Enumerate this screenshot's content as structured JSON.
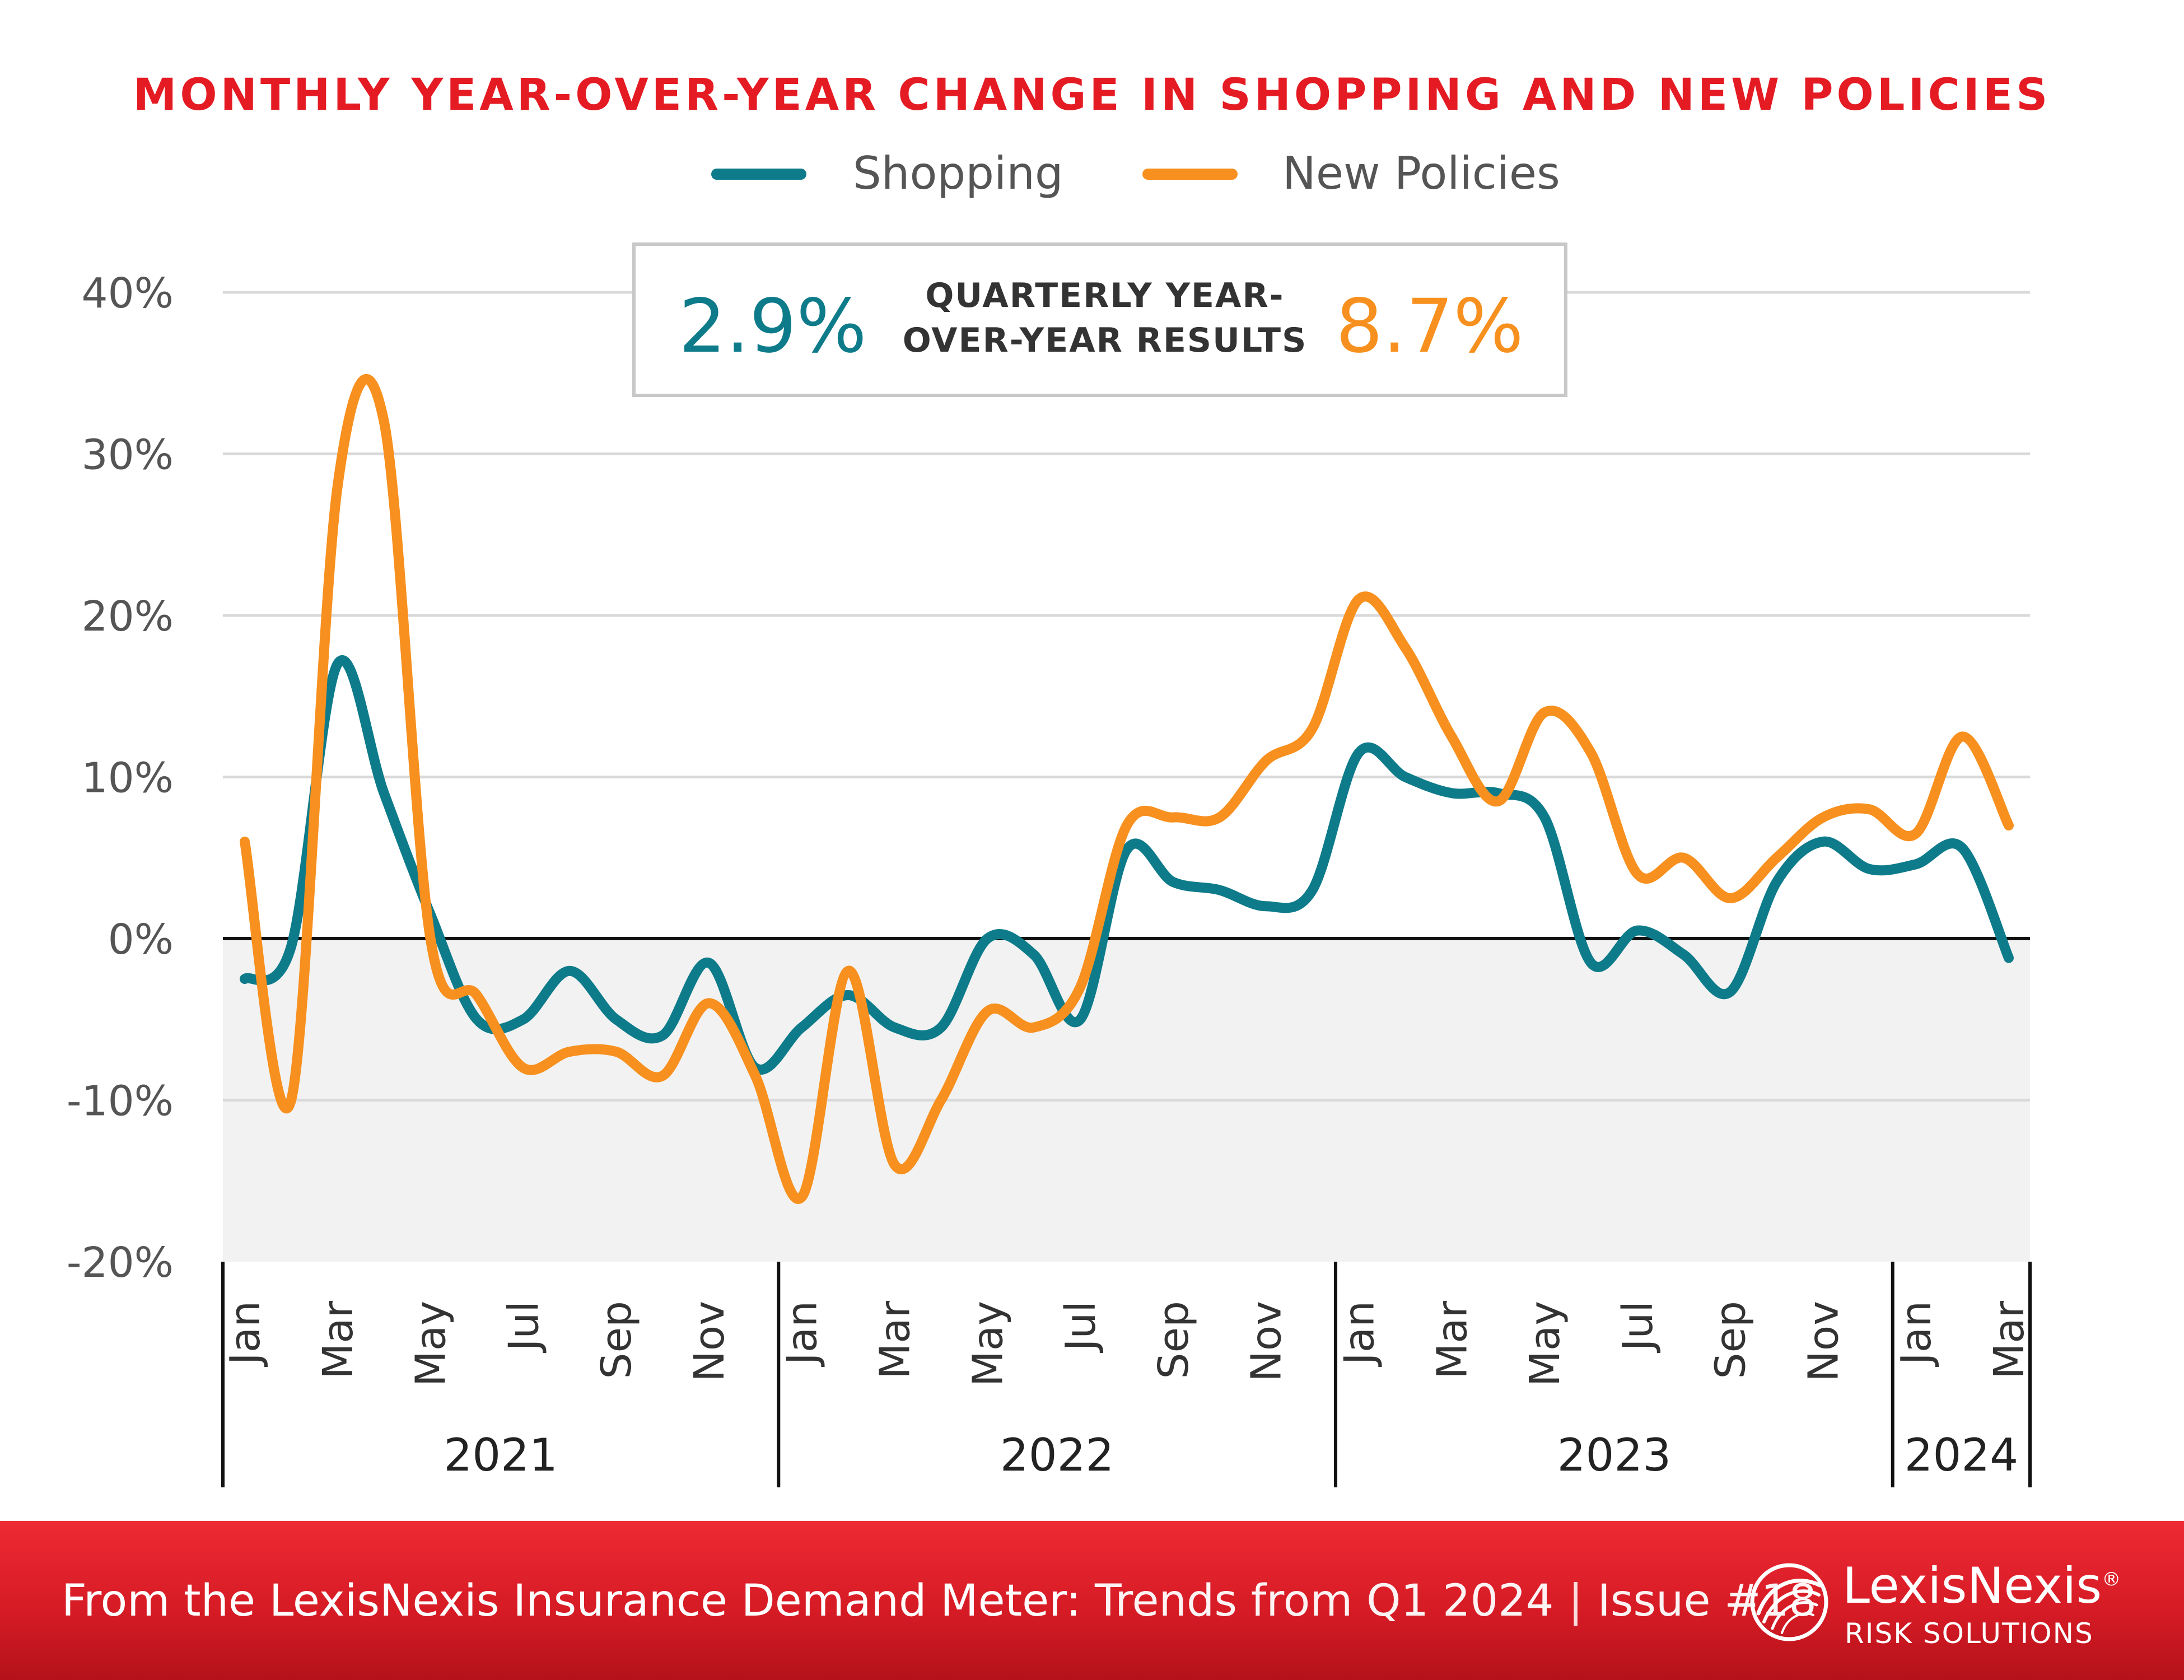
{
  "colors": {
    "shopping": "#0e7b8a",
    "new_policies": "#f7901e",
    "title_red": "#e51b24",
    "footer_red": "#e51b24",
    "axis_text": "#555555",
    "grid": "#d9d9d9",
    "negative_band": "#f2f2f2"
  },
  "legend": {
    "shopping_label": "Shopping",
    "new_policies_label": "New Policies"
  },
  "kpi": {
    "shopping_value": "2.9%",
    "caption_line1": "QUARTERLY YEAR-",
    "caption_line2": "OVER-YEAR RESULTS",
    "new_policies_value": "8.7%"
  },
  "chart_data": {
    "type": "line",
    "title": "MONTHLY YEAR-OVER-YEAR CHANGE IN SHOPPING AND NEW POLICIES",
    "xlabel": "",
    "ylabel": "",
    "ylim": [
      -20,
      40
    ],
    "yticks": [
      -20,
      -10,
      0,
      10,
      20,
      30,
      40
    ],
    "ytick_labels": [
      "-20%",
      "-10%",
      "0%",
      "10%",
      "20%",
      "30%",
      "40%"
    ],
    "grid": true,
    "legend_position": "top-center",
    "months": [
      "Jan",
      "Feb",
      "Mar",
      "Apr",
      "May",
      "Jun",
      "Jul",
      "Aug",
      "Sep",
      "Oct",
      "Nov",
      "Dec",
      "Jan",
      "Feb",
      "Mar",
      "Apr",
      "May",
      "Jun",
      "Jul",
      "Aug",
      "Sep",
      "Oct",
      "Nov",
      "Dec",
      "Jan",
      "Feb",
      "Mar",
      "Apr",
      "May",
      "Jun",
      "Jul",
      "Aug",
      "Sep",
      "Oct",
      "Nov",
      "Dec",
      "Jan",
      "Feb",
      "Mar"
    ],
    "x_tick_labels": [
      {
        "index": 0,
        "label": "Jan"
      },
      {
        "index": 2,
        "label": "Mar"
      },
      {
        "index": 4,
        "label": "May"
      },
      {
        "index": 6,
        "label": "Jul"
      },
      {
        "index": 8,
        "label": "Sep"
      },
      {
        "index": 10,
        "label": "Nov"
      },
      {
        "index": 12,
        "label": "Jan"
      },
      {
        "index": 14,
        "label": "Mar"
      },
      {
        "index": 16,
        "label": "May"
      },
      {
        "index": 18,
        "label": "Jul"
      },
      {
        "index": 20,
        "label": "Sep"
      },
      {
        "index": 22,
        "label": "Nov"
      },
      {
        "index": 24,
        "label": "Jan"
      },
      {
        "index": 26,
        "label": "Mar"
      },
      {
        "index": 28,
        "label": "May"
      },
      {
        "index": 30,
        "label": "Jul"
      },
      {
        "index": 32,
        "label": "Sep"
      },
      {
        "index": 34,
        "label": "Nov"
      },
      {
        "index": 36,
        "label": "Jan"
      },
      {
        "index": 38,
        "label": "Mar"
      }
    ],
    "years": [
      {
        "label": "2021",
        "start": 0,
        "end": 12
      },
      {
        "label": "2022",
        "start": 12,
        "end": 24
      },
      {
        "label": "2023",
        "start": 24,
        "end": 36
      },
      {
        "label": "2024",
        "start": 36,
        "end": 39
      }
    ],
    "series": [
      {
        "name": "Shopping",
        "values": [
          -2.5,
          -0.5,
          17,
          9,
          1.5,
          -5,
          -5,
          -2,
          -5,
          -6,
          -1.5,
          -8,
          -5.5,
          -3.5,
          -5.5,
          -5.5,
          0,
          -1,
          -5,
          5.5,
          3.5,
          3,
          2,
          3,
          11.5,
          10,
          9,
          9,
          7.5,
          -1.5,
          0.5,
          -1,
          -3.3,
          3.5,
          6,
          4.3,
          4.6,
          5.6,
          -1.2
        ]
      },
      {
        "name": "New Policies",
        "values": [
          6,
          -10,
          28,
          32,
          0,
          -3.5,
          -8,
          -7,
          -7,
          -8.5,
          -4,
          -8.5,
          -16,
          -2,
          -14,
          -10,
          -4.5,
          -5.5,
          -3,
          7,
          7.5,
          7.5,
          11,
          13,
          21,
          18,
          12.5,
          8.5,
          14,
          11.5,
          4,
          5,
          2.5,
          5,
          7.5,
          8,
          6.5,
          12.5,
          7
        ]
      }
    ]
  },
  "footer": {
    "bold_text": "From the LexisNexis Insurance Demand Meter:",
    "light_text": "Trends from Q1 2024",
    "separator": "|",
    "issue_text": "Issue #18"
  },
  "logo": {
    "wordmark": "LexisNexis",
    "registered": "®",
    "subtitle": "RISK SOLUTIONS"
  }
}
